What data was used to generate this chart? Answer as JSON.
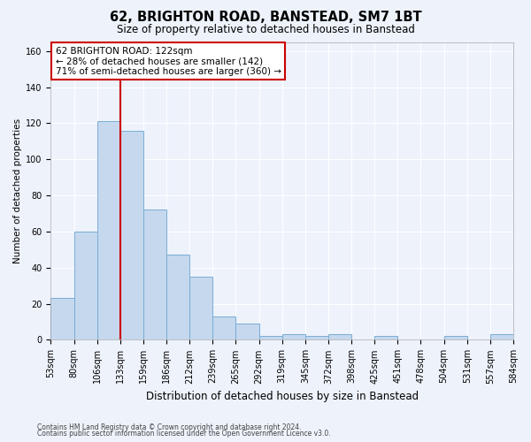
{
  "title1": "62, BRIGHTON ROAD, BANSTEAD, SM7 1BT",
  "title2": "Size of property relative to detached houses in Banstead",
  "xlabel": "Distribution of detached houses by size in Banstead",
  "ylabel": "Number of detached properties",
  "bar_color": "#c5d8ee",
  "bar_edge_color": "#7aadd4",
  "bar_heights": [
    23,
    60,
    121,
    116,
    72,
    47,
    35,
    13,
    9,
    2,
    3,
    2,
    3,
    0,
    2,
    0,
    0,
    2,
    0,
    3
  ],
  "x_labels": [
    "53sqm",
    "80sqm",
    "106sqm",
    "133sqm",
    "159sqm",
    "186sqm",
    "212sqm",
    "239sqm",
    "265sqm",
    "292sqm",
    "319sqm",
    "345sqm",
    "372sqm",
    "398sqm",
    "425sqm",
    "451sqm",
    "478sqm",
    "504sqm",
    "531sqm",
    "557sqm",
    "584sqm"
  ],
  "ylim": [
    0,
    165
  ],
  "yticks": [
    0,
    20,
    40,
    60,
    80,
    100,
    120,
    140,
    160
  ],
  "property_line_color": "#cc0000",
  "property_line_x": 3.0,
  "annotation_line1": "62 BRIGHTON ROAD: 122sqm",
  "annotation_line2": "← 28% of detached houses are smaller (142)",
  "annotation_line3": "71% of semi-detached houses are larger (360) →",
  "annotation_box_facecolor": "#ffffff",
  "annotation_border_color": "#cc0000",
  "footer_line1": "Contains HM Land Registry data © Crown copyright and database right 2024.",
  "footer_line2": "Contains public sector information licensed under the Open Government Licence v3.0.",
  "background_color": "#edf2fb",
  "grid_color": "#ffffff",
  "title1_fontsize": 10.5,
  "title2_fontsize": 8.5,
  "xlabel_fontsize": 8.5,
  "ylabel_fontsize": 7.5,
  "tick_fontsize": 7,
  "annotation_fontsize": 7.5,
  "footer_fontsize": 5.5
}
